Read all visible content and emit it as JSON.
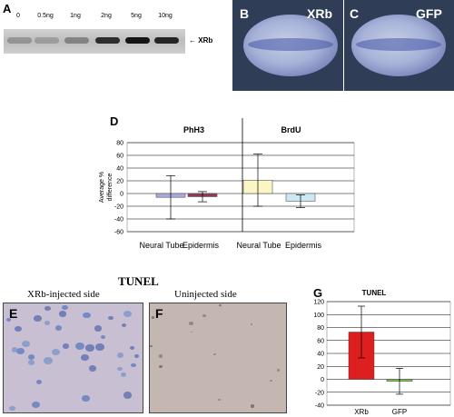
{
  "panel_a": {
    "letter": "A",
    "lanes": [
      "0",
      "0.5ng",
      "1ng",
      "2ng",
      "5ng",
      "10ng"
    ],
    "band_label": "XRb",
    "band_intensity": [
      0.25,
      0.2,
      0.35,
      0.85,
      1.0,
      0.9
    ]
  },
  "panel_b": {
    "letter": "B",
    "tag": "XRb"
  },
  "panel_c": {
    "letter": "C",
    "tag": "GFP"
  },
  "panel_d": {
    "letter": "D"
  },
  "tunel_title": "TUNEL",
  "panel_e": {
    "letter": "E",
    "caption": "XRb-injected side"
  },
  "panel_f": {
    "letter": "F",
    "caption": "Uninjected side"
  },
  "panel_g": {
    "letter": "G"
  },
  "chart_data": [
    {
      "type": "bar",
      "groups": [
        "PhH3",
        "BrdU"
      ],
      "categories": [
        "Neural Tube",
        "Epidermis",
        "Neural Tube",
        "Epidermis"
      ],
      "values": [
        -6,
        -5,
        21,
        -12
      ],
      "error": [
        34,
        8,
        41,
        10
      ],
      "colors": [
        "#a9a8e0",
        "#8c3a5c",
        "#fbf7c5",
        "#cde8f5"
      ],
      "ylabel": "Average % difference",
      "ylim": [
        -60,
        80
      ],
      "yticks": [
        -60,
        -40,
        -20,
        0,
        20,
        40,
        60,
        80
      ],
      "grid": true
    },
    {
      "type": "bar",
      "title": "TUNEL",
      "categories": [
        "XRb",
        "GFP"
      ],
      "values": [
        73,
        -3
      ],
      "error": [
        40,
        20
      ],
      "colors": [
        "#dd1f1f",
        "#78c84a"
      ],
      "ylim": [
        -40,
        120
      ],
      "yticks": [
        -40,
        -20,
        0,
        20,
        40,
        60,
        80,
        100,
        120
      ],
      "grid": true
    }
  ]
}
